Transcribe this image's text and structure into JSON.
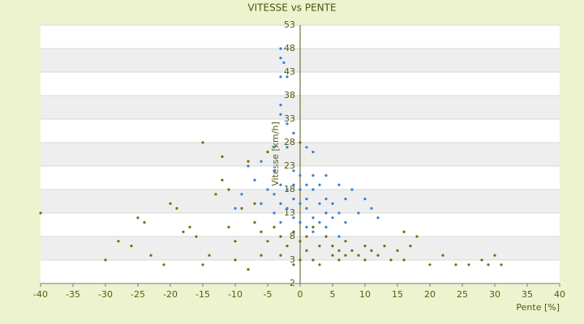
{
  "chart_data": {
    "type": "scatter",
    "title": "VITESSE vs PENTE",
    "x_label": "Pente [%]",
    "y_label": "Vitesse [km/h]",
    "xlim": [
      -40,
      40
    ],
    "xticks": [
      -40,
      -35,
      -30,
      -25,
      -20,
      -15,
      -10,
      -5,
      0,
      5,
      10,
      15,
      20,
      25,
      30,
      35,
      40
    ],
    "ylim": [
      -2,
      53
    ],
    "yticks": [
      -2,
      3,
      8,
      13,
      18,
      23,
      28,
      33,
      38,
      43,
      48,
      53
    ],
    "grid": true,
    "series": [
      {
        "color": "#2f7fd6",
        "x": [
          -3,
          -3,
          -2.5,
          -2,
          -3,
          -3,
          -3,
          -2,
          -1,
          -4,
          -2,
          1,
          2,
          -6,
          -8,
          -4,
          -1,
          0,
          2,
          4,
          -7,
          -3,
          -1,
          1,
          3,
          6,
          -5,
          -2,
          0,
          2,
          8,
          -9,
          -4,
          -1,
          1,
          4,
          7,
          10,
          -6,
          -3,
          0,
          3,
          5,
          -2,
          1,
          4,
          6,
          9,
          -4,
          -1,
          2,
          5,
          -3,
          0,
          3,
          7,
          1,
          4,
          -1,
          2,
          6,
          11,
          12,
          -10
        ],
        "values": [
          48,
          46,
          45,
          42,
          42,
          36,
          34,
          32,
          30,
          27,
          27,
          27,
          26,
          24,
          23,
          22,
          22,
          21,
          21,
          21,
          20,
          19,
          19,
          19,
          19,
          19,
          18,
          18,
          18,
          18,
          18,
          17,
          17,
          16,
          16,
          16,
          16,
          16,
          15,
          15,
          15,
          15,
          15,
          14,
          14,
          13,
          13,
          13,
          13,
          12,
          12,
          12,
          11,
          11,
          11,
          11,
          10,
          10,
          9,
          9,
          8,
          14,
          12,
          14
        ]
      },
      {
        "color": "#6d7000",
        "x": [
          -40,
          -30,
          -28,
          -26,
          -25,
          -24,
          -23,
          -21,
          -20,
          -19,
          -18,
          -17,
          -16,
          -15,
          -15,
          -14,
          -13,
          -12,
          -12,
          -11,
          -11,
          -10,
          -10,
          -9,
          -8,
          -8,
          -7,
          -7,
          -6,
          -6,
          -5,
          -5,
          -4,
          -3,
          -3,
          -2,
          -1,
          -1,
          0,
          0,
          0,
          1,
          1,
          2,
          2,
          3,
          3,
          4,
          5,
          5,
          6,
          6,
          7,
          7,
          8,
          9,
          10,
          10,
          11,
          12,
          13,
          14,
          15,
          16,
          16,
          17,
          18,
          20,
          22,
          24,
          26,
          28,
          29,
          30,
          31
        ],
        "values": [
          13,
          3,
          7,
          6,
          12,
          11,
          4,
          2,
          15,
          14,
          9,
          10,
          8,
          28,
          2,
          4,
          17,
          25,
          20,
          18,
          10,
          3,
          7,
          14,
          24,
          1,
          15,
          11,
          9,
          4,
          26,
          7,
          10,
          8,
          4,
          6,
          9,
          2,
          28,
          3,
          7,
          5,
          8,
          3,
          10,
          6,
          2,
          8,
          6,
          4,
          5,
          3,
          7,
          4,
          5,
          4,
          6,
          3,
          5,
          4,
          6,
          3,
          5,
          9,
          3,
          6,
          8,
          2,
          4,
          2,
          2,
          3,
          2,
          4,
          2
        ]
      }
    ]
  }
}
